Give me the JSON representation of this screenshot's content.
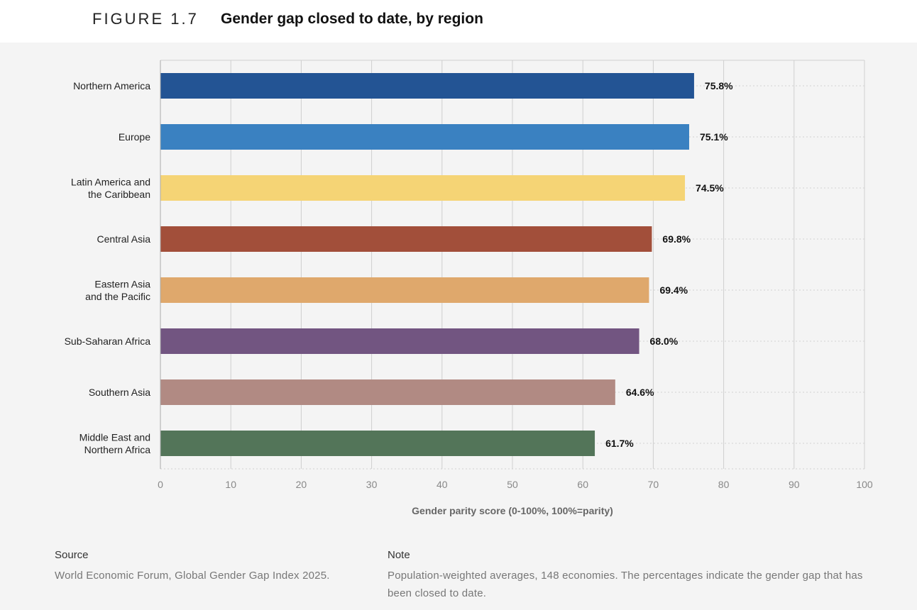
{
  "figure": {
    "label": "FIGURE 1.7",
    "title": "Gender gap closed to date, by region"
  },
  "chart_data": {
    "type": "bar",
    "orientation": "horizontal",
    "categories": [
      [
        "Northern America"
      ],
      [
        "Europe"
      ],
      [
        "Latin America and",
        "the Caribbean"
      ],
      [
        "Central Asia"
      ],
      [
        "Eastern Asia",
        "and the Pacific"
      ],
      [
        "Sub-Saharan Africa"
      ],
      [
        "Southern Asia"
      ],
      [
        "Middle East and",
        "Northern Africa"
      ]
    ],
    "values": [
      75.8,
      75.1,
      74.5,
      69.8,
      69.4,
      68.0,
      64.6,
      61.7
    ],
    "value_labels": [
      "75.8%",
      "75.1%",
      "74.5%",
      "69.8%",
      "69.4%",
      "68.0%",
      "64.6%",
      "61.7%"
    ],
    "colors": [
      "#235494",
      "#3a81c1",
      "#f5d475",
      "#a24f3a",
      "#dfa86c",
      "#725581",
      "#b18a83",
      "#537559"
    ],
    "xlim": [
      0,
      100
    ],
    "xticks": [
      "0",
      "10",
      "20",
      "30",
      "40",
      "50",
      "60",
      "70",
      "80",
      "90",
      "100"
    ],
    "xlabel": "Gender parity score (0-100%, 100%=parity)",
    "grid": true
  },
  "footer": {
    "source_heading": "Source",
    "source_text": "World Economic Forum, Global Gender Gap Index 2025.",
    "note_heading": "Note",
    "note_text": "Population-weighted averages, 148 economies. The percentages indicate the gender gap that has been closed to date."
  }
}
